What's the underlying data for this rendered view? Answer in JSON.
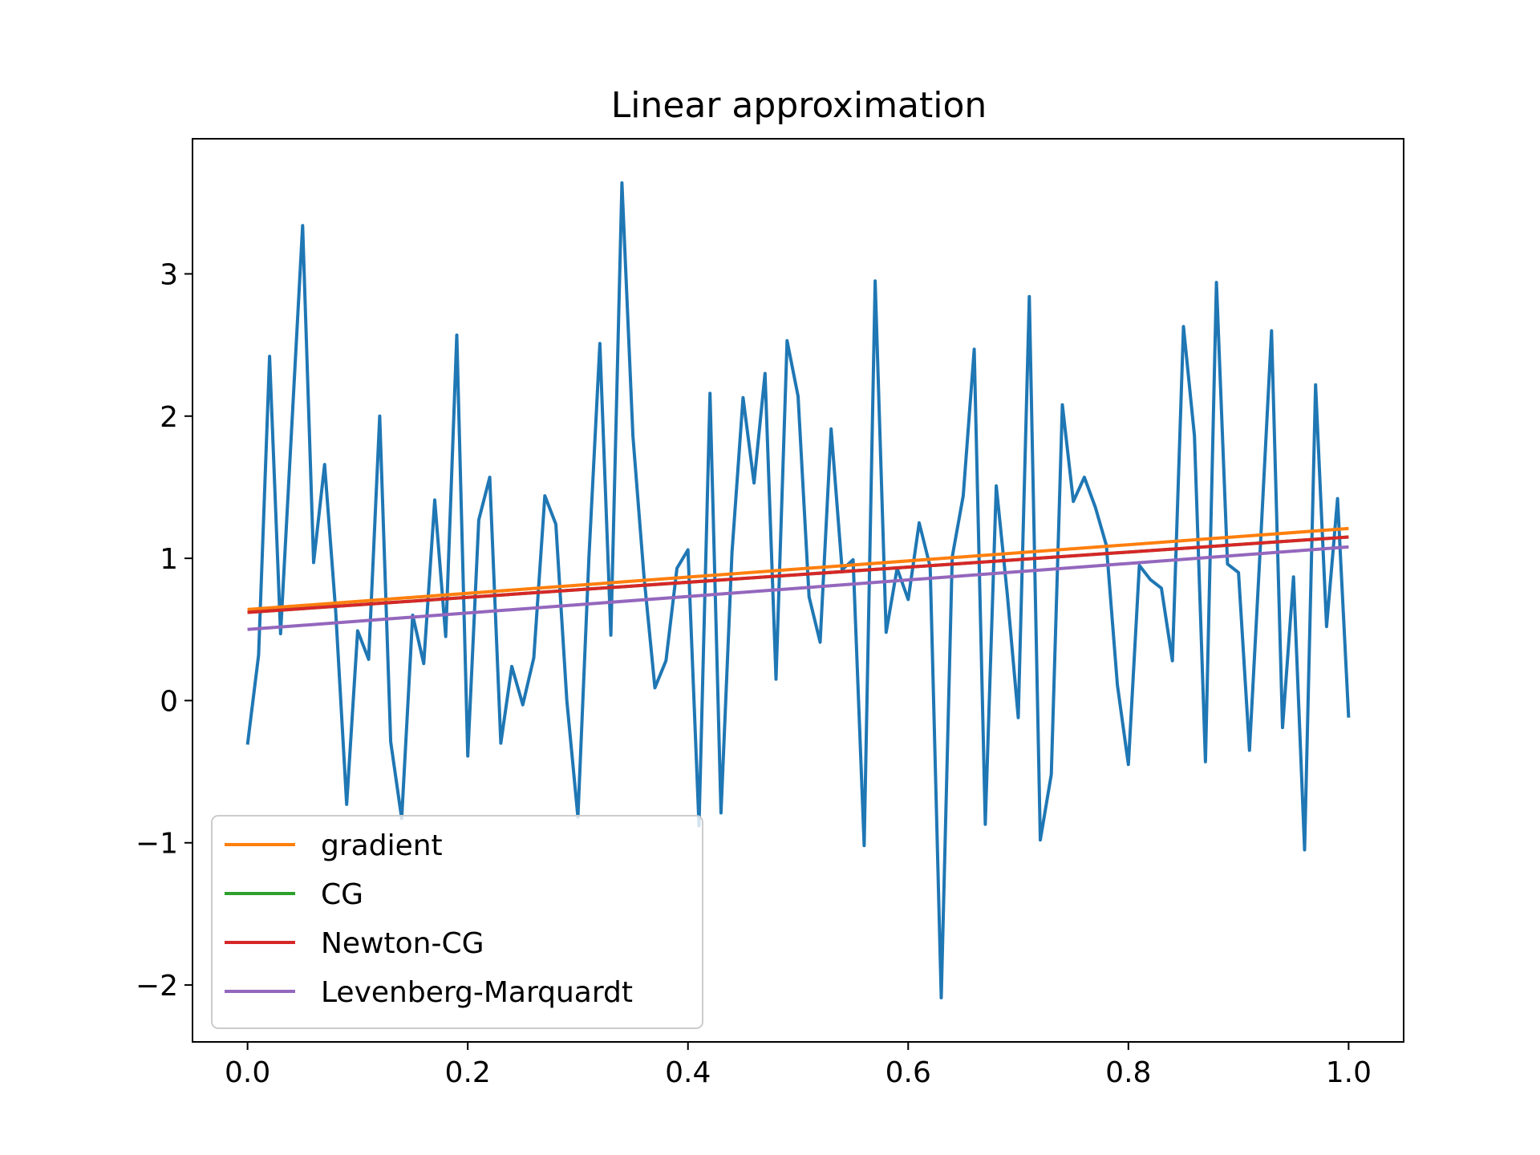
{
  "chart_data": {
    "type": "line",
    "title": "Linear approximation",
    "xlabel": "",
    "ylabel": "",
    "xlim": [
      -0.05,
      1.05
    ],
    "ylim": [
      -2.4,
      3.95
    ],
    "xticks": [
      0.0,
      0.2,
      0.4,
      0.6,
      0.8,
      1.0
    ],
    "xtick_labels": [
      "0.0",
      "0.2",
      "0.4",
      "0.6",
      "0.8",
      "1.0"
    ],
    "yticks": [
      -2,
      -1,
      0,
      1,
      2,
      3
    ],
    "ytick_labels": [
      "−2",
      "−1",
      "0",
      "1",
      "2",
      "3"
    ],
    "grid": false,
    "legend_position": "lower-left",
    "data_series": {
      "color": "#1f77b4",
      "x_start": 0.0,
      "x_step": 0.01,
      "y": [
        -0.31,
        0.32,
        2.42,
        0.47,
        1.9,
        3.34,
        0.97,
        1.66,
        0.63,
        -0.73,
        0.49,
        0.29,
        2.0,
        -0.29,
        -0.83,
        0.6,
        0.26,
        1.41,
        0.45,
        2.57,
        -0.39,
        1.27,
        1.57,
        -0.3,
        0.24,
        -0.03,
        0.3,
        1.44,
        1.24,
        0.0,
        -0.82,
        1.0,
        2.51,
        0.46,
        3.64,
        1.86,
        0.88,
        0.09,
        0.28,
        0.93,
        1.06,
        -0.88,
        2.16,
        -0.79,
        1.04,
        2.13,
        1.53,
        2.3,
        0.15,
        2.53,
        2.14,
        0.73,
        0.41,
        1.91,
        0.92,
        0.99,
        -1.02,
        2.95,
        0.48,
        0.93,
        0.71,
        1.25,
        0.94,
        -2.09,
        1.01,
        1.44,
        2.47,
        -0.87,
        1.51,
        0.75,
        -0.12,
        2.84,
        -0.98,
        -0.52,
        2.08,
        1.4,
        1.57,
        1.36,
        1.09,
        0.11,
        -0.45,
        0.95,
        0.85,
        0.79,
        0.28,
        2.63,
        1.86,
        -0.43,
        2.94,
        0.96,
        0.9,
        -0.35,
        1.1,
        2.6,
        -0.19,
        0.87,
        -1.05,
        2.22,
        0.52,
        1.42,
        -0.12
      ]
    },
    "series": [
      {
        "name": "gradient",
        "color": "#ff7f0e",
        "x": [
          0,
          1
        ],
        "y": [
          0.64,
          1.21
        ]
      },
      {
        "name": "CG",
        "color": "#2ca02c",
        "x": [
          0,
          1
        ],
        "y": [
          0.62,
          1.15
        ]
      },
      {
        "name": "Newton-CG",
        "color": "#d62728",
        "x": [
          0,
          1
        ],
        "y": [
          0.62,
          1.15
        ]
      },
      {
        "name": "Levenberg-Marquardt",
        "color": "#9467bd",
        "x": [
          0,
          1
        ],
        "y": [
          0.5,
          1.08
        ]
      }
    ]
  }
}
